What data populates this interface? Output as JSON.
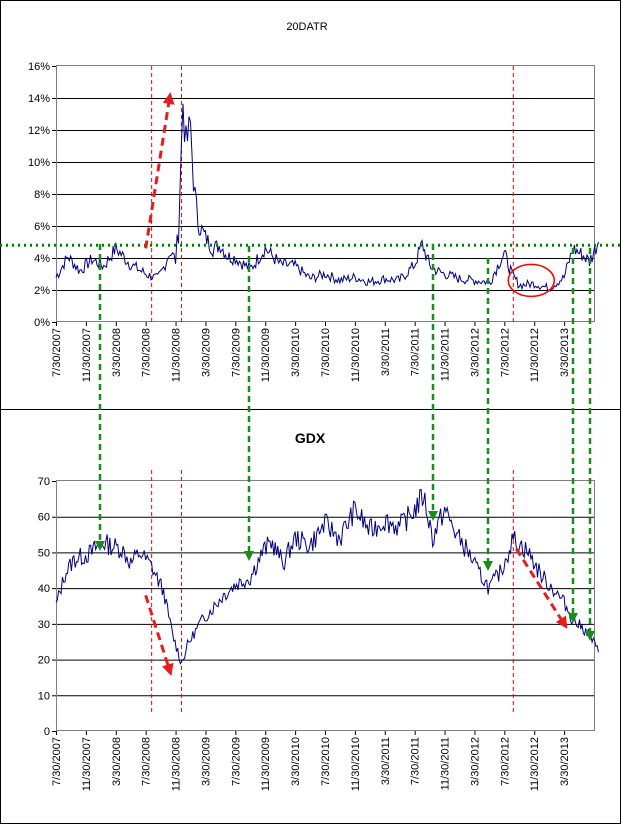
{
  "x_tick_labels": [
    "7/30/2007",
    "11/30/2007",
    "3/30/2008",
    "7/30/2008",
    "11/30/2008",
    "3/30/2009",
    "7/30/2009",
    "11/30/2009",
    "3/30/2010",
    "7/30/2010",
    "11/30/2010",
    "3/30/2011",
    "7/30/2011",
    "11/30/2011",
    "3/30/2012",
    "7/30/2012",
    "11/30/2012",
    "3/30/2013"
  ],
  "colors": {
    "series": "#000080",
    "red_marker": "#ff0000",
    "arrow_red": "#e81c1c",
    "arrow_green": "#1a8c1a",
    "dotted_green": "#008000",
    "gridline": "#000000",
    "frame": "#000000"
  },
  "chart_data": [
    {
      "type": "line",
      "title": "20DATR",
      "ylabel": "",
      "xlabel": "",
      "ylim": [
        0,
        16
      ],
      "y_ticks": [
        "0%",
        "2%",
        "4%",
        "6%",
        "8%",
        "10%",
        "12%",
        "14%",
        "16%"
      ],
      "categories": [
        "7/30/2007",
        "11/30/2007",
        "3/30/2008",
        "7/30/2008",
        "11/30/2008",
        "3/30/2009",
        "7/30/2009",
        "11/30/2009",
        "3/30/2010",
        "7/30/2010",
        "11/30/2010",
        "3/30/2011",
        "7/30/2011",
        "11/30/2011",
        "3/30/2012",
        "7/30/2012",
        "11/30/2012",
        "3/30/2013"
      ],
      "series": [
        {
          "name": "20DATR (%)",
          "x": [
            0.0,
            0.4,
            0.8,
            1.2,
            1.6,
            2.0,
            2.5,
            3.0,
            3.4,
            3.6,
            3.8,
            4.0,
            4.1,
            4.25,
            4.35,
            4.5,
            4.6,
            4.75,
            5.0,
            5.25,
            5.5,
            5.75,
            6.0,
            6.5,
            7.0,
            7.5,
            8.0,
            8.5,
            9.0,
            9.5,
            10.0,
            10.5,
            11.0,
            11.5,
            12.0,
            12.25,
            12.5,
            12.75,
            13.0,
            13.5,
            14.0,
            14.5,
            15.0,
            15.25,
            15.5,
            16.0,
            16.5,
            17.0,
            17.3,
            17.6,
            17.85,
            18.15
          ],
          "values": [
            2.8,
            4.1,
            3.2,
            3.9,
            3.5,
            4.6,
            3.6,
            3.0,
            2.7,
            3.4,
            4.4,
            3.9,
            6.0,
            13.8,
            11.0,
            12.3,
            8.8,
            6.2,
            5.3,
            4.6,
            4.8,
            4.1,
            4.0,
            3.3,
            4.6,
            3.6,
            3.5,
            2.7,
            3.0,
            2.6,
            2.8,
            2.5,
            2.7,
            2.6,
            3.6,
            4.9,
            3.5,
            3.2,
            3.0,
            2.7,
            2.6,
            2.5,
            4.3,
            3.0,
            2.3,
            2.4,
            2.1,
            2.8,
            4.6,
            4.2,
            3.8,
            5.0
          ]
        }
      ],
      "annotations": {
        "threshold_value": 4.8,
        "red_dashed_dates": [
          3.2,
          4.2,
          15.3
        ],
        "circle_region": {
          "x": 15.9,
          "y": 2.6
        },
        "rising_arrow": {
          "from": [
            3.0,
            4.6
          ],
          "to": [
            3.8,
            14.0
          ]
        }
      }
    },
    {
      "type": "line",
      "title": "GDX",
      "ylabel": "",
      "xlabel": "",
      "ylim": [
        0,
        70
      ],
      "y_ticks": [
        "0",
        "10",
        "20",
        "30",
        "40",
        "50",
        "60",
        "70"
      ],
      "categories": [
        "7/30/2007",
        "11/30/2007",
        "3/30/2008",
        "7/30/2008",
        "11/30/2008",
        "3/30/2009",
        "7/30/2009",
        "11/30/2009",
        "3/30/2010",
        "7/30/2010",
        "11/30/2010",
        "3/30/2011",
        "7/30/2011",
        "11/30/2011",
        "3/30/2012",
        "7/30/2012",
        "11/30/2012",
        "3/30/2013"
      ],
      "series": [
        {
          "name": "GDX",
          "x": [
            0.0,
            0.3,
            0.6,
            0.9,
            1.2,
            1.5,
            1.8,
            2.2,
            2.5,
            2.8,
            3.0,
            3.2,
            3.6,
            3.9,
            4.2,
            4.4,
            4.8,
            5.2,
            5.6,
            6.0,
            6.5,
            6.9,
            7.2,
            7.6,
            8.0,
            8.5,
            9.0,
            9.5,
            10.0,
            10.5,
            11.0,
            11.5,
            12.0,
            12.3,
            12.6,
            13.0,
            13.4,
            13.8,
            14.1,
            14.5,
            14.9,
            15.3,
            15.8,
            16.2,
            16.6,
            17.0,
            17.3,
            17.6,
            17.85,
            18.15
          ],
          "values": [
            35,
            44,
            48,
            49,
            50,
            53,
            52,
            51,
            47,
            50,
            48,
            46,
            39,
            27,
            19,
            24,
            30,
            34,
            38,
            41,
            43,
            50,
            53,
            47,
            54,
            52,
            58,
            54,
            62,
            56,
            59,
            57,
            62,
            66,
            54,
            62,
            55,
            50,
            45,
            40,
            45,
            54,
            50,
            44,
            40,
            36,
            31,
            29,
            27,
            22
          ]
        }
      ],
      "annotations": {
        "red_dashed_dates": [
          3.2,
          4.2,
          15.3
        ],
        "falling_arrows": [
          {
            "from": [
              3.0,
              38
            ],
            "to": [
              3.8,
              17
            ]
          },
          {
            "from": [
              15.4,
              51
            ],
            "to": [
              17.0,
              30
            ]
          }
        ]
      }
    }
  ]
}
